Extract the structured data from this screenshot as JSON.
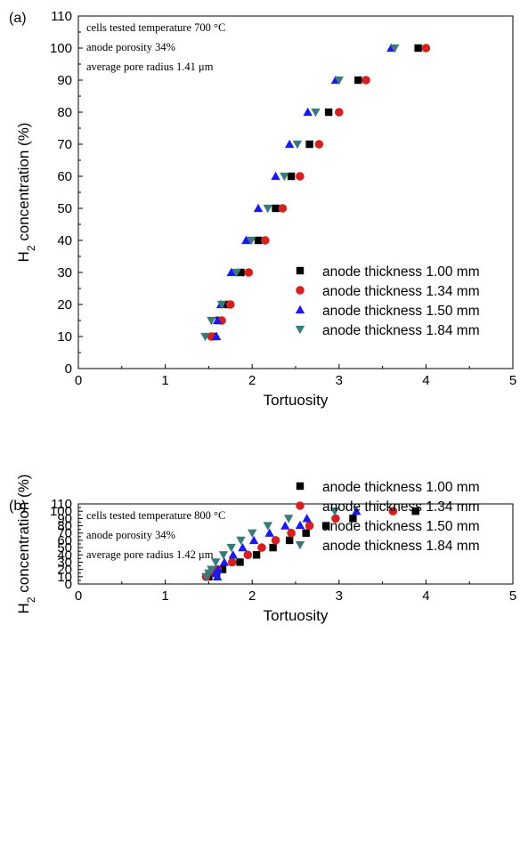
{
  "chart_data": [
    {
      "type": "scatter",
      "panel_label": "(a)",
      "xlabel": "Tortuosity",
      "ylabel": "H2 concentration (%)",
      "ylabel_parts": {
        "pre": "H",
        "sub": "2",
        "post": " concentration (%)"
      },
      "xlim": [
        0,
        5
      ],
      "ylim": [
        0,
        110
      ],
      "xticks": [
        0,
        1,
        2,
        3,
        4,
        5
      ],
      "yticks": [
        0,
        10,
        20,
        30,
        40,
        50,
        60,
        70,
        80,
        90,
        100,
        110
      ],
      "grid": false,
      "legend_position": "bottom-right",
      "annotations": [
        "cells tested temperature 700 °C",
        "anode porosity 34%",
        "average pore radius 1.41 μm"
      ],
      "series": [
        {
          "name": "anode thickness 1.00 mm",
          "marker": "square",
          "color": "#000000",
          "x": [
            1.56,
            1.62,
            1.72,
            1.87,
            2.07,
            2.27,
            2.45,
            2.66,
            2.88,
            3.22,
            3.91
          ],
          "y": [
            10,
            15,
            20,
            30,
            40,
            50,
            60,
            70,
            80,
            90,
            100
          ]
        },
        {
          "name": "anode thickness 1.34 mm",
          "marker": "circle",
          "color": "#d42020",
          "x": [
            1.53,
            1.65,
            1.75,
            1.96,
            2.15,
            2.35,
            2.55,
            2.77,
            3.0,
            3.31,
            4.0
          ],
          "y": [
            10,
            15,
            20,
            30,
            40,
            50,
            60,
            70,
            80,
            90,
            100
          ]
        },
        {
          "name": "anode thickness 1.50 mm",
          "marker": "triangle-up",
          "color": "#1a1aee",
          "x": [
            1.59,
            1.6,
            1.64,
            1.76,
            1.93,
            2.07,
            2.27,
            2.43,
            2.64,
            2.96,
            3.6
          ],
          "y": [
            10,
            15,
            20,
            30,
            40,
            50,
            60,
            70,
            80,
            90,
            100
          ]
        },
        {
          "name": "anode thickness 1.84 mm",
          "marker": "triangle-down",
          "color": "#3a7a7a",
          "x": [
            1.46,
            1.53,
            1.65,
            1.82,
            1.99,
            2.18,
            2.37,
            2.52,
            2.73,
            3.0,
            3.64
          ],
          "y": [
            10,
            15,
            20,
            30,
            40,
            50,
            60,
            70,
            80,
            90,
            100
          ]
        }
      ]
    },
    {
      "type": "scatter",
      "panel_label": "(b)",
      "xlabel": "Tortuosity",
      "ylabel": "H2 concentration (%)",
      "ylabel_parts": {
        "pre": "H",
        "sub": "2",
        "post": " concentration (%)"
      },
      "xlim": [
        0,
        5
      ],
      "ylim": [
        0,
        110
      ],
      "xticks": [
        0,
        1,
        2,
        3,
        4,
        5
      ],
      "yticks": [
        0,
        10,
        20,
        30,
        40,
        50,
        60,
        70,
        80,
        90,
        100,
        110
      ],
      "grid": false,
      "legend_position": "bottom-right",
      "annotations": [
        "cells tested temperature 800 °C",
        "anode porosity 34%",
        "average pore radius 1.42 μm"
      ],
      "series": [
        {
          "name": "anode thickness 1.00 mm",
          "marker": "square",
          "color": "#000000",
          "x": [
            1.5,
            1.59,
            1.66,
            1.86,
            2.05,
            2.24,
            2.43,
            2.62,
            2.85,
            3.16,
            3.88
          ],
          "y": [
            10,
            15,
            20,
            30,
            40,
            50,
            60,
            70,
            80,
            90,
            100
          ]
        },
        {
          "name": "anode thickness 1.34 mm",
          "marker": "circle",
          "color": "#d42020",
          "x": [
            1.47,
            1.56,
            1.6,
            1.77,
            1.95,
            2.11,
            2.27,
            2.45,
            2.66,
            2.96,
            3.62
          ],
          "y": [
            10,
            15,
            20,
            30,
            40,
            50,
            60,
            70,
            80,
            90,
            100
          ]
        },
        {
          "name": "anode thickness 1.50 mm",
          "marker": "triangle-up",
          "color": "#1a1aee",
          "x": [
            1.6,
            1.58,
            1.61,
            1.68,
            1.78,
            1.89,
            2.02,
            2.2,
            2.38,
            2.63,
            3.2
          ],
          "y": [
            10,
            15,
            20,
            30,
            40,
            50,
            60,
            70,
            80,
            90,
            100
          ]
        },
        {
          "name": "anode thickness 1.84 mm",
          "marker": "triangle-down",
          "color": "#3a7a7a",
          "x": [
            1.47,
            1.5,
            1.53,
            1.58,
            1.67,
            1.76,
            1.87,
            2.0,
            2.18,
            2.42,
            2.95
          ],
          "y": [
            10,
            15,
            20,
            30,
            40,
            50,
            60,
            70,
            80,
            90,
            100
          ]
        }
      ]
    }
  ]
}
